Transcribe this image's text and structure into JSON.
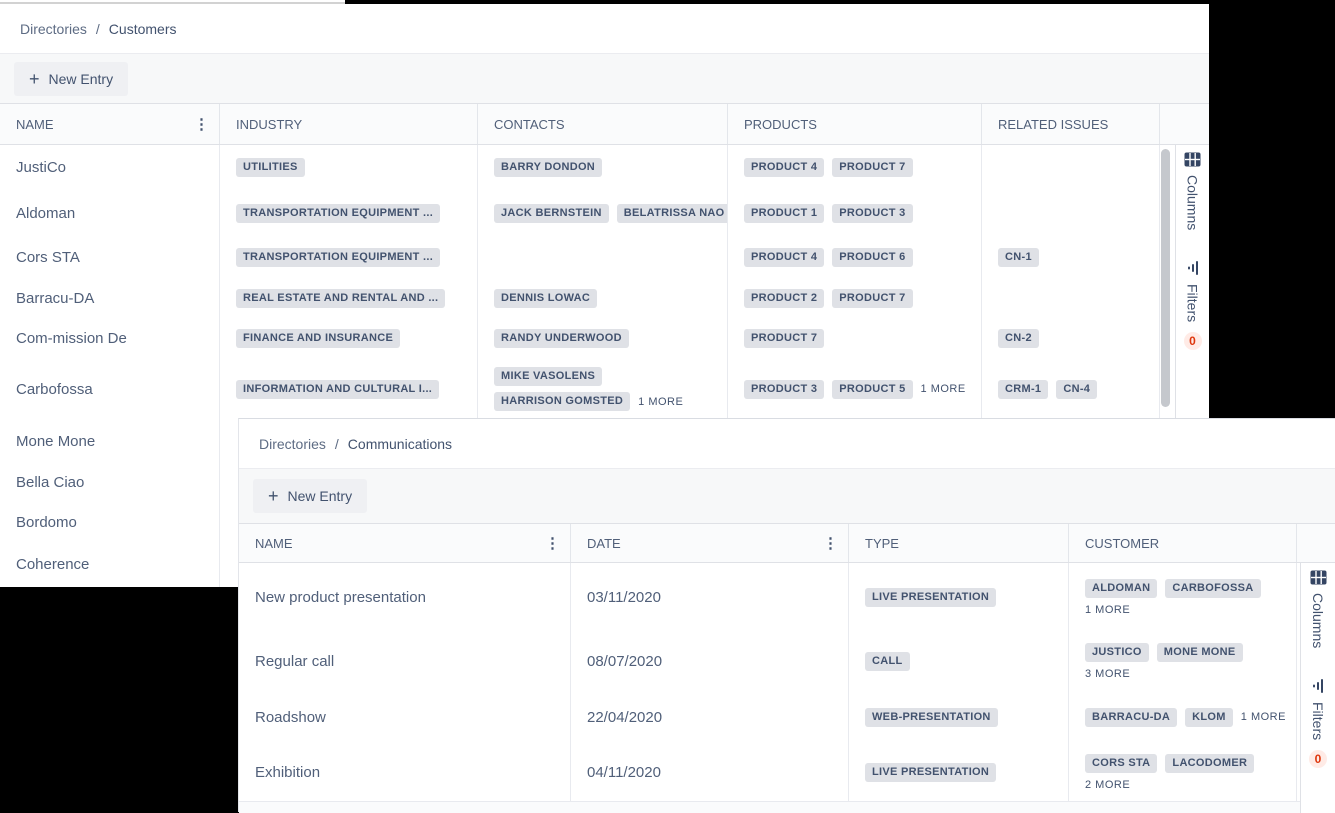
{
  "colors": {
    "chip_bg": "#dfe1e6",
    "chip_text": "#42526e",
    "accent_text": "#42526e",
    "badge_bg": "#ffebe6",
    "badge_text": "#de350b",
    "background": "#000000"
  },
  "panels": {
    "customers": {
      "breadcrumb": {
        "parent": "Directories",
        "separator": "/",
        "current": "Customers"
      },
      "new_entry_label": "New Entry",
      "columns": [
        "NAME",
        "INDUSTRY",
        "CONTACTS",
        "PRODUCTS",
        "RELATED ISSUES"
      ],
      "rows": [
        {
          "name": "JustiCo",
          "industry": [
            "UTILITIES"
          ],
          "contacts": [
            "BARRY DONDON"
          ],
          "products": [
            "PRODUCT 4",
            "PRODUCT 7"
          ],
          "issues": []
        },
        {
          "name": "Aldoman",
          "industry": [
            "TRANSPORTATION EQUIPMENT ..."
          ],
          "contacts": [
            "JACK BERNSTEIN",
            "BELATRISSA NAO"
          ],
          "products": [
            "PRODUCT 1",
            "PRODUCT 3"
          ],
          "issues": []
        },
        {
          "name": "Cors STA",
          "industry": [
            "TRANSPORTATION EQUIPMENT ..."
          ],
          "contacts": [],
          "products": [
            "PRODUCT 4",
            "PRODUCT 6"
          ],
          "issues": [
            "CN-1"
          ]
        },
        {
          "name": "Barracu-DA",
          "industry": [
            "REAL ESTATE AND RENTAL AND ..."
          ],
          "contacts": [
            "DENNIS LOWAC"
          ],
          "products": [
            "PRODUCT 2",
            "PRODUCT 7"
          ],
          "issues": []
        },
        {
          "name": "Com-mission De",
          "industry": [
            "FINANCE AND INSURANCE"
          ],
          "contacts": [
            "RANDY UNDERWOOD"
          ],
          "products": [
            "PRODUCT 7"
          ],
          "issues": [
            "CN-2"
          ]
        },
        {
          "name": "Carbofossa",
          "industry": [
            "INFORMATION AND CULTURAL I..."
          ],
          "contacts": [
            "MIKE VASOLENS",
            "HARRISON GOMSTED"
          ],
          "contacts_stacked": true,
          "contacts_more": "1 MORE",
          "products": [
            "PRODUCT 3",
            "PRODUCT 5"
          ],
          "products_more": "1 MORE",
          "issues": [
            "CRM-1",
            "CN-4"
          ]
        },
        {
          "name": "Mone Mone",
          "industry": [],
          "contacts": [],
          "products": [],
          "issues": []
        },
        {
          "name": "Bella Ciao",
          "industry": [],
          "contacts": [],
          "products": [],
          "issues": []
        },
        {
          "name": "Bordomo",
          "industry": [],
          "contacts": [],
          "products": [],
          "issues": []
        },
        {
          "name": "Coherence",
          "industry": [],
          "contacts": [],
          "products": [],
          "issues": []
        }
      ],
      "sidebar": {
        "columns_label": "Columns",
        "filters_label": "Filters",
        "filters_count": "0"
      }
    },
    "communications": {
      "breadcrumb": {
        "parent": "Directories",
        "separator": "/",
        "current": "Communications"
      },
      "new_entry_label": "New Entry",
      "columns": [
        "NAME",
        "DATE",
        "TYPE",
        "CUSTOMER"
      ],
      "rows": [
        {
          "name": "New product presentation",
          "date": "03/11/2020",
          "type": "LIVE PRESENTATION",
          "customers": [
            "ALDOMAN",
            "CARBOFOSSA"
          ],
          "more": "1 MORE",
          "more_inline": false
        },
        {
          "name": "Regular call",
          "date": "08/07/2020",
          "type": "CALL",
          "customers": [
            "JUSTICO",
            "MONE MONE"
          ],
          "more": "3 MORE",
          "more_inline": false
        },
        {
          "name": "Roadshow",
          "date": "22/04/2020",
          "type": "WEB-PRESENTATION",
          "customers": [
            "BARRACU-DA",
            "KLOM"
          ],
          "more": "1 MORE",
          "more_inline": true
        },
        {
          "name": "Exhibition",
          "date": "04/11/2020",
          "type": "LIVE PRESENTATION",
          "customers": [
            "CORS STA",
            "LACODOMER"
          ],
          "more": "2 MORE",
          "more_inline": false
        }
      ],
      "sidebar": {
        "columns_label": "Columns",
        "filters_label": "Filters",
        "filters_count": "0"
      }
    }
  }
}
